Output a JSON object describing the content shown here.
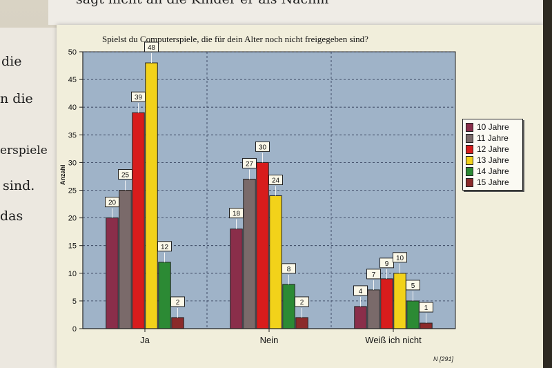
{
  "handwriting": {
    "top_line": "sagt nicht an die Kinder er als Nachm",
    "left_lines": [
      "die",
      "n die",
      "erspiele",
      "sind.",
      "das"
    ]
  },
  "chart_data": {
    "type": "bar",
    "title": "Spielst du Computerspiele, die für dein Alter noch nicht freigegeben sind?",
    "xlabel": "",
    "ylabel": "Anzahl",
    "ylim": [
      0,
      50
    ],
    "yticks": [
      0,
      5,
      10,
      15,
      20,
      25,
      30,
      35,
      40,
      45,
      50
    ],
    "categories": [
      "Ja",
      "Nein",
      "Weiß ich nicht"
    ],
    "series": [
      {
        "name": "10 Jahre",
        "color": "#8a2e4a",
        "values": [
          20,
          18,
          4
        ]
      },
      {
        "name": "11 Jahre",
        "color": "#7a6a6a",
        "values": [
          25,
          27,
          7
        ]
      },
      {
        "name": "12 Jahre",
        "color": "#d81c1c",
        "values": [
          39,
          30,
          9
        ]
      },
      {
        "name": "13 Jahre",
        "color": "#f2d21a",
        "values": [
          48,
          24,
          10
        ]
      },
      {
        "name": "14 Jahre",
        "color": "#2c8a34",
        "values": [
          12,
          8,
          5
        ]
      },
      {
        "name": "15 Jahre",
        "color": "#8b2a2a",
        "values": [
          2,
          2,
          1
        ]
      }
    ],
    "grid": true,
    "legend_position": "right",
    "plot_background": "#9fb3c8",
    "footnote": "N [291]"
  }
}
